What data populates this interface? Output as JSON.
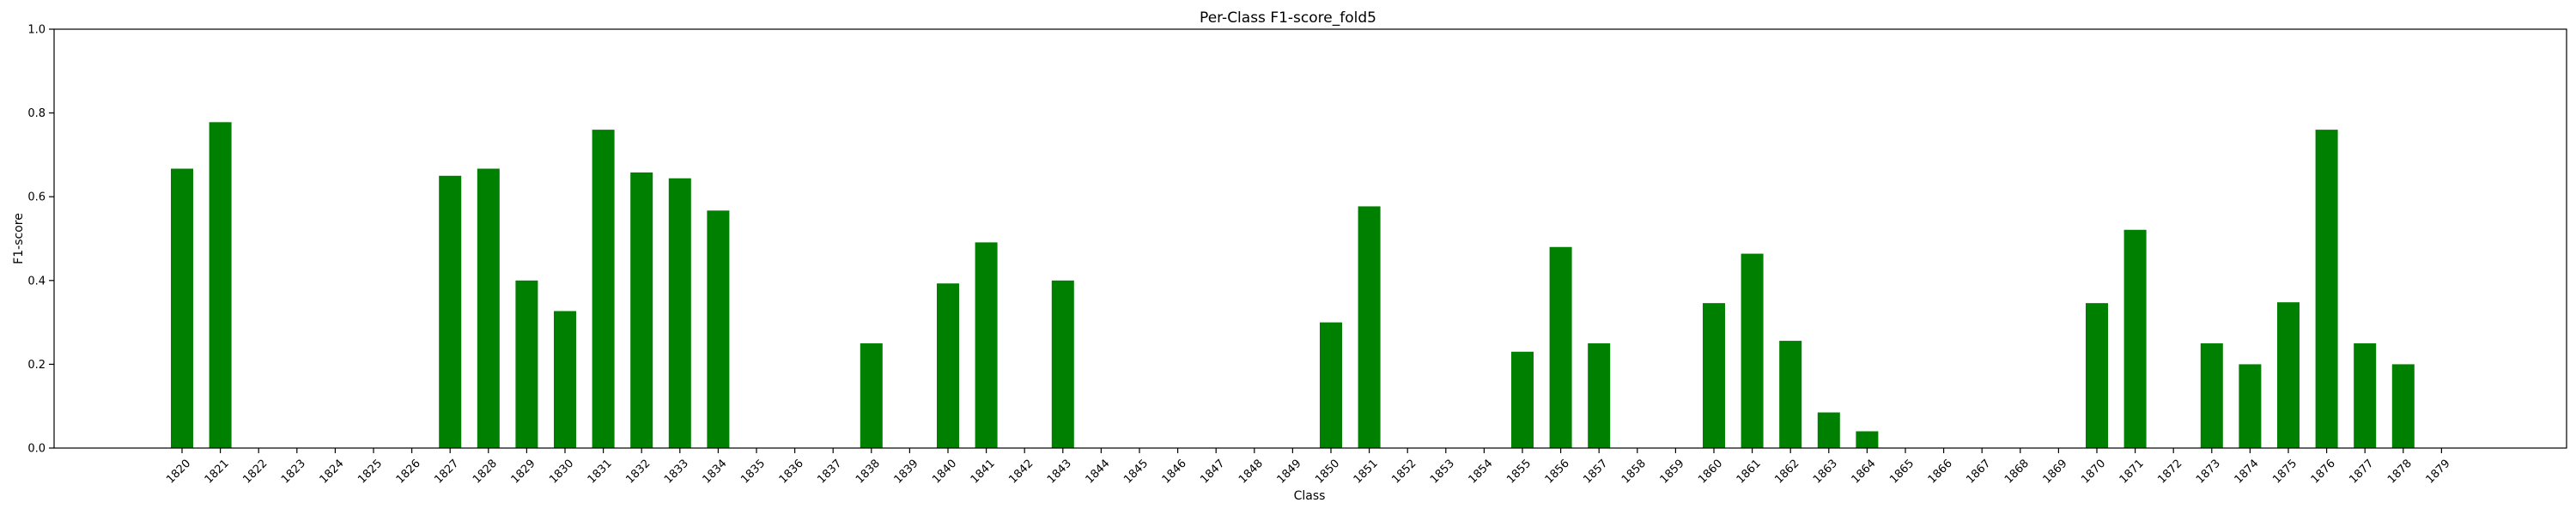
{
  "chart_data": {
    "type": "bar",
    "title": "Per-Class F1-score_fold5",
    "xlabel": "Class",
    "ylabel": "F1-score",
    "ylim": [
      0,
      1.0
    ],
    "yticks": [
      "0.0",
      "0.2",
      "0.4",
      "0.6",
      "0.8",
      "1.0"
    ],
    "grid": false,
    "bar_color": "#008000",
    "categories": [
      "1820",
      "1821",
      "1822",
      "1823",
      "1824",
      "1825",
      "1826",
      "1827",
      "1828",
      "1829",
      "1830",
      "1831",
      "1832",
      "1833",
      "1834",
      "1835",
      "1836",
      "1837",
      "1838",
      "1839",
      "1840",
      "1841",
      "1842",
      "1843",
      "1844",
      "1845",
      "1846",
      "1847",
      "1848",
      "1849",
      "1850",
      "1851",
      "1852",
      "1853",
      "1854",
      "1855",
      "1856",
      "1857",
      "1858",
      "1859",
      "1860",
      "1861",
      "1862",
      "1863",
      "1864",
      "1865",
      "1866",
      "1867",
      "1868",
      "1869",
      "1870",
      "1871",
      "1872",
      "1873",
      "1874",
      "1875",
      "1876",
      "1877",
      "1878",
      "1879"
    ],
    "values": [
      0.667,
      0.778,
      0,
      0,
      0,
      0,
      0,
      0.65,
      0.667,
      0.4,
      0.327,
      0.76,
      0.658,
      0.644,
      0.567,
      0,
      0,
      0,
      0.25,
      0,
      0.393,
      0.491,
      0,
      0.4,
      0,
      0,
      0,
      0,
      0,
      0,
      0.3,
      0.577,
      0,
      0,
      0,
      0.23,
      0.48,
      0.25,
      0,
      0,
      0.346,
      0.464,
      0.256,
      0.085,
      0.04,
      0,
      0,
      0,
      0,
      0,
      0.346,
      0.521,
      0,
      0.25,
      0.2,
      0.348,
      0.76,
      0.25,
      0.2,
      0
    ]
  }
}
